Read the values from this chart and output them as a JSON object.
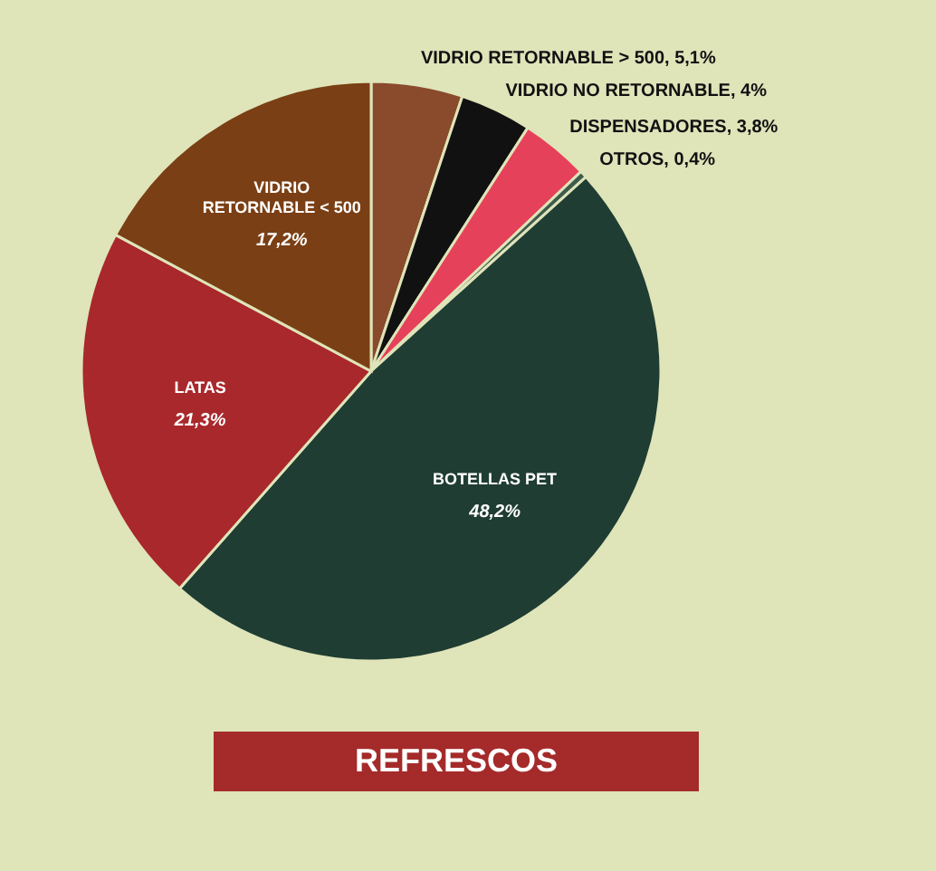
{
  "chart_data": {
    "type": "pie",
    "title": "REFRESCOS",
    "categories": [
      "VIDRIO RETORNABLE > 500",
      "VIDRIO NO RETORNABLE",
      "DISPENSADORES",
      "OTROS",
      "BOTELLAS PET",
      "LATAS",
      "VIDRIO RETORNABLE < 500"
    ],
    "values": [
      5.1,
      4,
      3.8,
      0.4,
      48.2,
      21.3,
      17.2
    ],
    "value_labels": [
      "5,1%",
      "4%",
      "3,8%",
      "0,4%",
      "48,2%",
      "21,3%",
      "17,2%"
    ],
    "colors": [
      "#8a4a2c",
      "#111111",
      "#e6415a",
      "#3e5c4c",
      "#1f3d33",
      "#a8282c",
      "#7a3f14"
    ]
  }
}
